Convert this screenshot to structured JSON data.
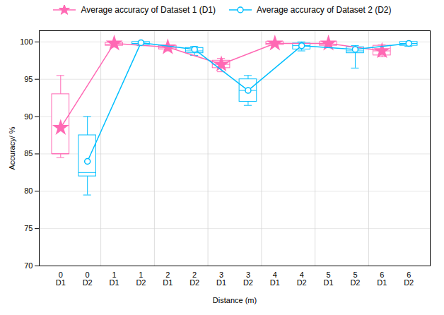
{
  "chart_data": {
    "type": "box",
    "xlabel": "Distance (m)",
    "ylabel": "Accuracy/ %",
    "categories": [
      "0",
      "1",
      "2",
      "3",
      "4",
      "5",
      "6"
    ],
    "ylim": [
      70,
      101.5
    ],
    "yticks": [
      70,
      75,
      80,
      85,
      90,
      95,
      100
    ],
    "grid": true,
    "legend": "top",
    "series": [
      {
        "name": "Average accuracy of Dataset 1 (D1)",
        "label": "D1",
        "color": "#FF69B4",
        "marker": "star",
        "mean": [
          88.5,
          99.8,
          99.3,
          97.0,
          99.8,
          99.8,
          98.8
        ],
        "q1": [
          85.0,
          99.5,
          99.0,
          96.5,
          99.6,
          99.5,
          98.2
        ],
        "median": [
          85.0,
          99.7,
          99.2,
          97.0,
          99.8,
          99.7,
          98.8
        ],
        "q3": [
          93.0,
          99.9,
          99.5,
          97.5,
          100.0,
          100.0,
          99.5
        ],
        "whislo": [
          84.5,
          99.3,
          98.8,
          96.0,
          99.5,
          99.4,
          98.0
        ],
        "whishi": [
          95.5,
          100.0,
          99.6,
          97.8,
          100.0,
          100.0,
          99.6
        ]
      },
      {
        "name": "Average accuracy of Dataset 2 (D2)",
        "label": "D2",
        "color": "#00BFFF",
        "marker": "circle",
        "mean": [
          84.0,
          99.9,
          99.0,
          93.5,
          99.5,
          99.0,
          99.8
        ],
        "q1": [
          82.0,
          99.6,
          98.5,
          92.0,
          99.0,
          98.5,
          99.5
        ],
        "median": [
          82.5,
          99.8,
          98.8,
          93.5,
          99.5,
          98.8,
          99.8
        ],
        "q3": [
          87.5,
          100.0,
          99.2,
          95.0,
          99.8,
          99.3,
          100.0
        ],
        "whislo": [
          79.5,
          99.5,
          98.2,
          91.5,
          98.8,
          96.5,
          99.4
        ],
        "whishi": [
          90.0,
          100.0,
          99.4,
          95.5,
          100.0,
          99.5,
          100.0
        ]
      }
    ]
  }
}
